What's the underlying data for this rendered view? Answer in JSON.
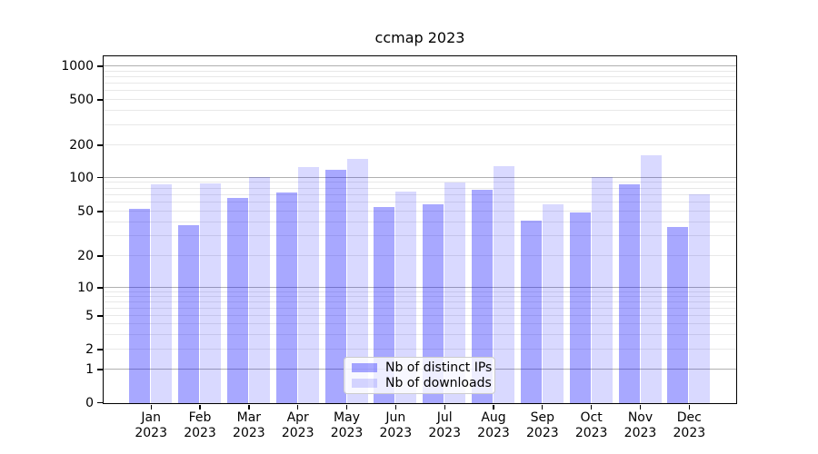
{
  "title": "ccmap 2023",
  "legend": {
    "items": [
      {
        "key": "distinct_ips",
        "label": "Nb of distinct IPs"
      },
      {
        "key": "downloads",
        "label": "Nb of downloads"
      }
    ]
  },
  "colors": {
    "distinct_ips": "rgba(0,0,255,0.34)",
    "downloads": "rgba(0,0,255,0.15)",
    "major_grid": "#b0b0b0",
    "minor_grid": "#e8e8e8",
    "axis": "#000000",
    "legend_border": "#cccccc"
  },
  "x_axis": {
    "months": [
      "Jan",
      "Feb",
      "Mar",
      "Apr",
      "May",
      "Jun",
      "Jul",
      "Aug",
      "Sep",
      "Oct",
      "Nov",
      "Dec"
    ],
    "year": "2023"
  },
  "y_axis": {
    "tick_labels": [
      "0",
      "1",
      "2",
      "5",
      "10",
      "20",
      "50",
      "100",
      "200",
      "500",
      "1000"
    ]
  },
  "chart_data": {
    "type": "bar",
    "title": "ccmap 2023",
    "categories": [
      "Jan 2023",
      "Feb 2023",
      "Mar 2023",
      "Apr 2023",
      "May 2023",
      "Jun 2023",
      "Jul 2023",
      "Aug 2023",
      "Sep 2023",
      "Oct 2023",
      "Nov 2023",
      "Dec 2023"
    ],
    "series": [
      {
        "name": "Nb of distinct IPs",
        "color_key": "distinct_ips",
        "values": [
          53,
          38,
          66,
          75,
          120,
          55,
          59,
          79,
          42,
          50,
          88,
          37
        ]
      },
      {
        "name": "Nb of downloads",
        "color_key": "downloads",
        "values": [
          88,
          89,
          103,
          126,
          150,
          76,
          92,
          129,
          58,
          102,
          162,
          72
        ]
      }
    ],
    "yscale": "symlog",
    "yticks": [
      0,
      1,
      2,
      5,
      10,
      20,
      50,
      100,
      200,
      500,
      1000
    ],
    "ylim": [
      0,
      1230
    ],
    "grid": "horizontal major and minor",
    "legend_position": "lower center"
  }
}
